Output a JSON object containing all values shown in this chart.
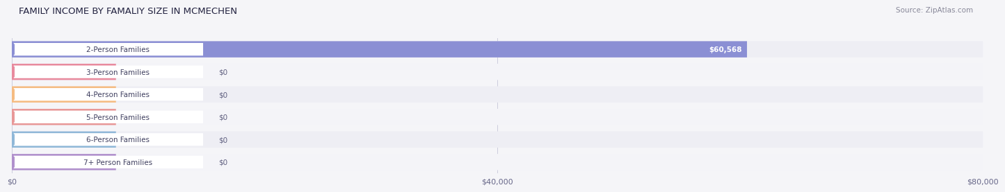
{
  "title": "FAMILY INCOME BY FAMALIY SIZE IN MCMECHEN",
  "source": "Source: ZipAtlas.com",
  "categories": [
    "2-Person Families",
    "3-Person Families",
    "4-Person Families",
    "5-Person Families",
    "6-Person Families",
    "7+ Person Families"
  ],
  "values": [
    60568,
    0,
    0,
    0,
    0,
    0
  ],
  "bar_colors": [
    "#8b8fd4",
    "#e88a9e",
    "#f5bc82",
    "#e89898",
    "#90b8d8",
    "#b090cc"
  ],
  "row_colors": [
    "#eeeef4",
    "#f4f4f8",
    "#eeeef4",
    "#f4f4f8",
    "#eeeef4",
    "#f4f4f8"
  ],
  "value_labels": [
    "$60,568",
    "$0",
    "$0",
    "$0",
    "$0",
    "$0"
  ],
  "xlim": [
    0,
    80000
  ],
  "xticks": [
    0,
    40000,
    80000
  ],
  "xticklabels": [
    "$0",
    "$40,000",
    "$80,000"
  ],
  "bg_color": "#f5f5f8",
  "title_fontsize": 9.5,
  "source_fontsize": 7.5,
  "tick_fontsize": 8,
  "label_fontsize": 7.5,
  "value_fontsize": 7.5
}
